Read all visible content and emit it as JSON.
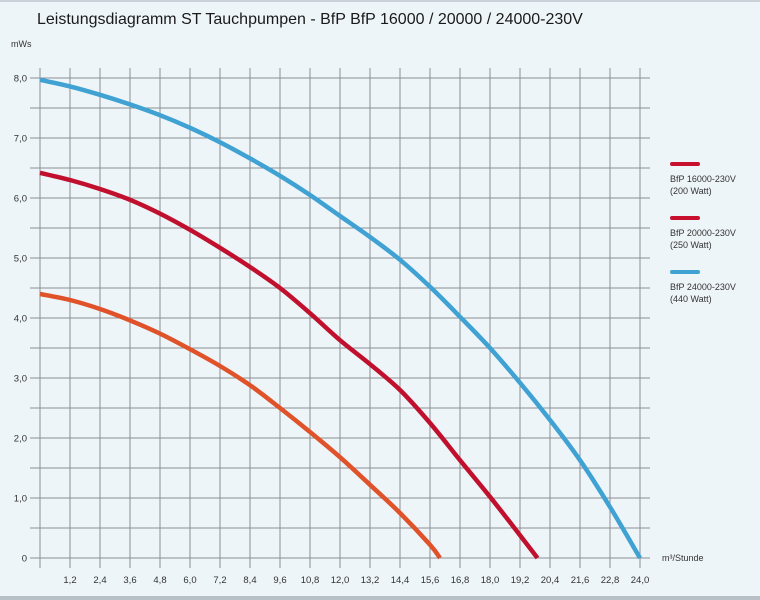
{
  "chart_data": {
    "type": "line",
    "title": "Leistungsdiagramm ST Tauchpumpen - BfP BfP 16000 / 20000 / 24000-230V",
    "xlabel": "m³/Stunde",
    "ylabel": "mWs",
    "xlim": [
      0,
      24.0
    ],
    "ylim": [
      0,
      8.0
    ],
    "x_ticks": [
      "1,2",
      "2,4",
      "3,6",
      "4,8",
      "6,0",
      "7,2",
      "8,4",
      "9,6",
      "10,8",
      "12,0",
      "13,2",
      "14,4",
      "15,6",
      "16,8",
      "18,0",
      "19,2",
      "20,4",
      "21,6",
      "22,8",
      "24,0"
    ],
    "y_ticks": [
      "0",
      "1,0",
      "2,0",
      "3,0",
      "4,0",
      "5,0",
      "6,0",
      "7,0",
      "8,0"
    ],
    "x_tick_values": [
      1.2,
      2.4,
      3.6,
      4.8,
      6.0,
      7.2,
      8.4,
      9.6,
      10.8,
      12.0,
      13.2,
      14.4,
      15.6,
      16.8,
      18.0,
      19.2,
      20.4,
      21.6,
      22.8,
      24.0
    ],
    "y_tick_values": [
      0,
      1,
      2,
      3,
      4,
      5,
      6,
      7,
      8
    ],
    "grid": true,
    "legend_position": "right",
    "series": [
      {
        "name": "BfP 16000-230V",
        "power": "(200 Watt)",
        "color": "#e0522a",
        "legend_color": "#c8102e",
        "x": [
          0,
          1.2,
          2.4,
          3.6,
          4.8,
          6.0,
          7.2,
          8.4,
          9.6,
          10.8,
          12.0,
          13.2,
          14.4,
          15.6,
          16.0
        ],
        "y": [
          4.4,
          4.3,
          4.15,
          3.96,
          3.74,
          3.48,
          3.2,
          2.88,
          2.5,
          2.1,
          1.68,
          1.22,
          0.75,
          0.22,
          0
        ]
      },
      {
        "name": "BfP 20000-230V",
        "power": "(250 Watt)",
        "color": "#c0102e",
        "legend_color": "#c8102e",
        "x": [
          0,
          1.2,
          2.4,
          3.6,
          4.8,
          6.0,
          7.2,
          8.4,
          9.6,
          10.8,
          12.0,
          13.2,
          14.4,
          15.6,
          16.8,
          18.0,
          19.2,
          19.9
        ],
        "y": [
          6.42,
          6.3,
          6.15,
          5.97,
          5.74,
          5.47,
          5.17,
          4.85,
          4.5,
          4.08,
          3.63,
          3.23,
          2.8,
          2.25,
          1.63,
          1.02,
          0.38,
          0
        ]
      },
      {
        "name": "BfP 24000-230V",
        "power": "(440 Watt)",
        "color": "#3fa2d3",
        "legend_color": "#3fa2d3",
        "x": [
          0,
          1.2,
          2.4,
          3.6,
          4.8,
          6.0,
          7.2,
          8.4,
          9.6,
          10.8,
          12.0,
          13.2,
          14.4,
          15.6,
          16.8,
          18.0,
          19.2,
          20.4,
          21.6,
          22.8,
          24.0
        ],
        "y": [
          7.97,
          7.86,
          7.72,
          7.56,
          7.38,
          7.17,
          6.93,
          6.66,
          6.37,
          6.05,
          5.7,
          5.35,
          4.97,
          4.52,
          4.02,
          3.5,
          2.92,
          2.3,
          1.63,
          0.85,
          0
        ]
      }
    ]
  }
}
